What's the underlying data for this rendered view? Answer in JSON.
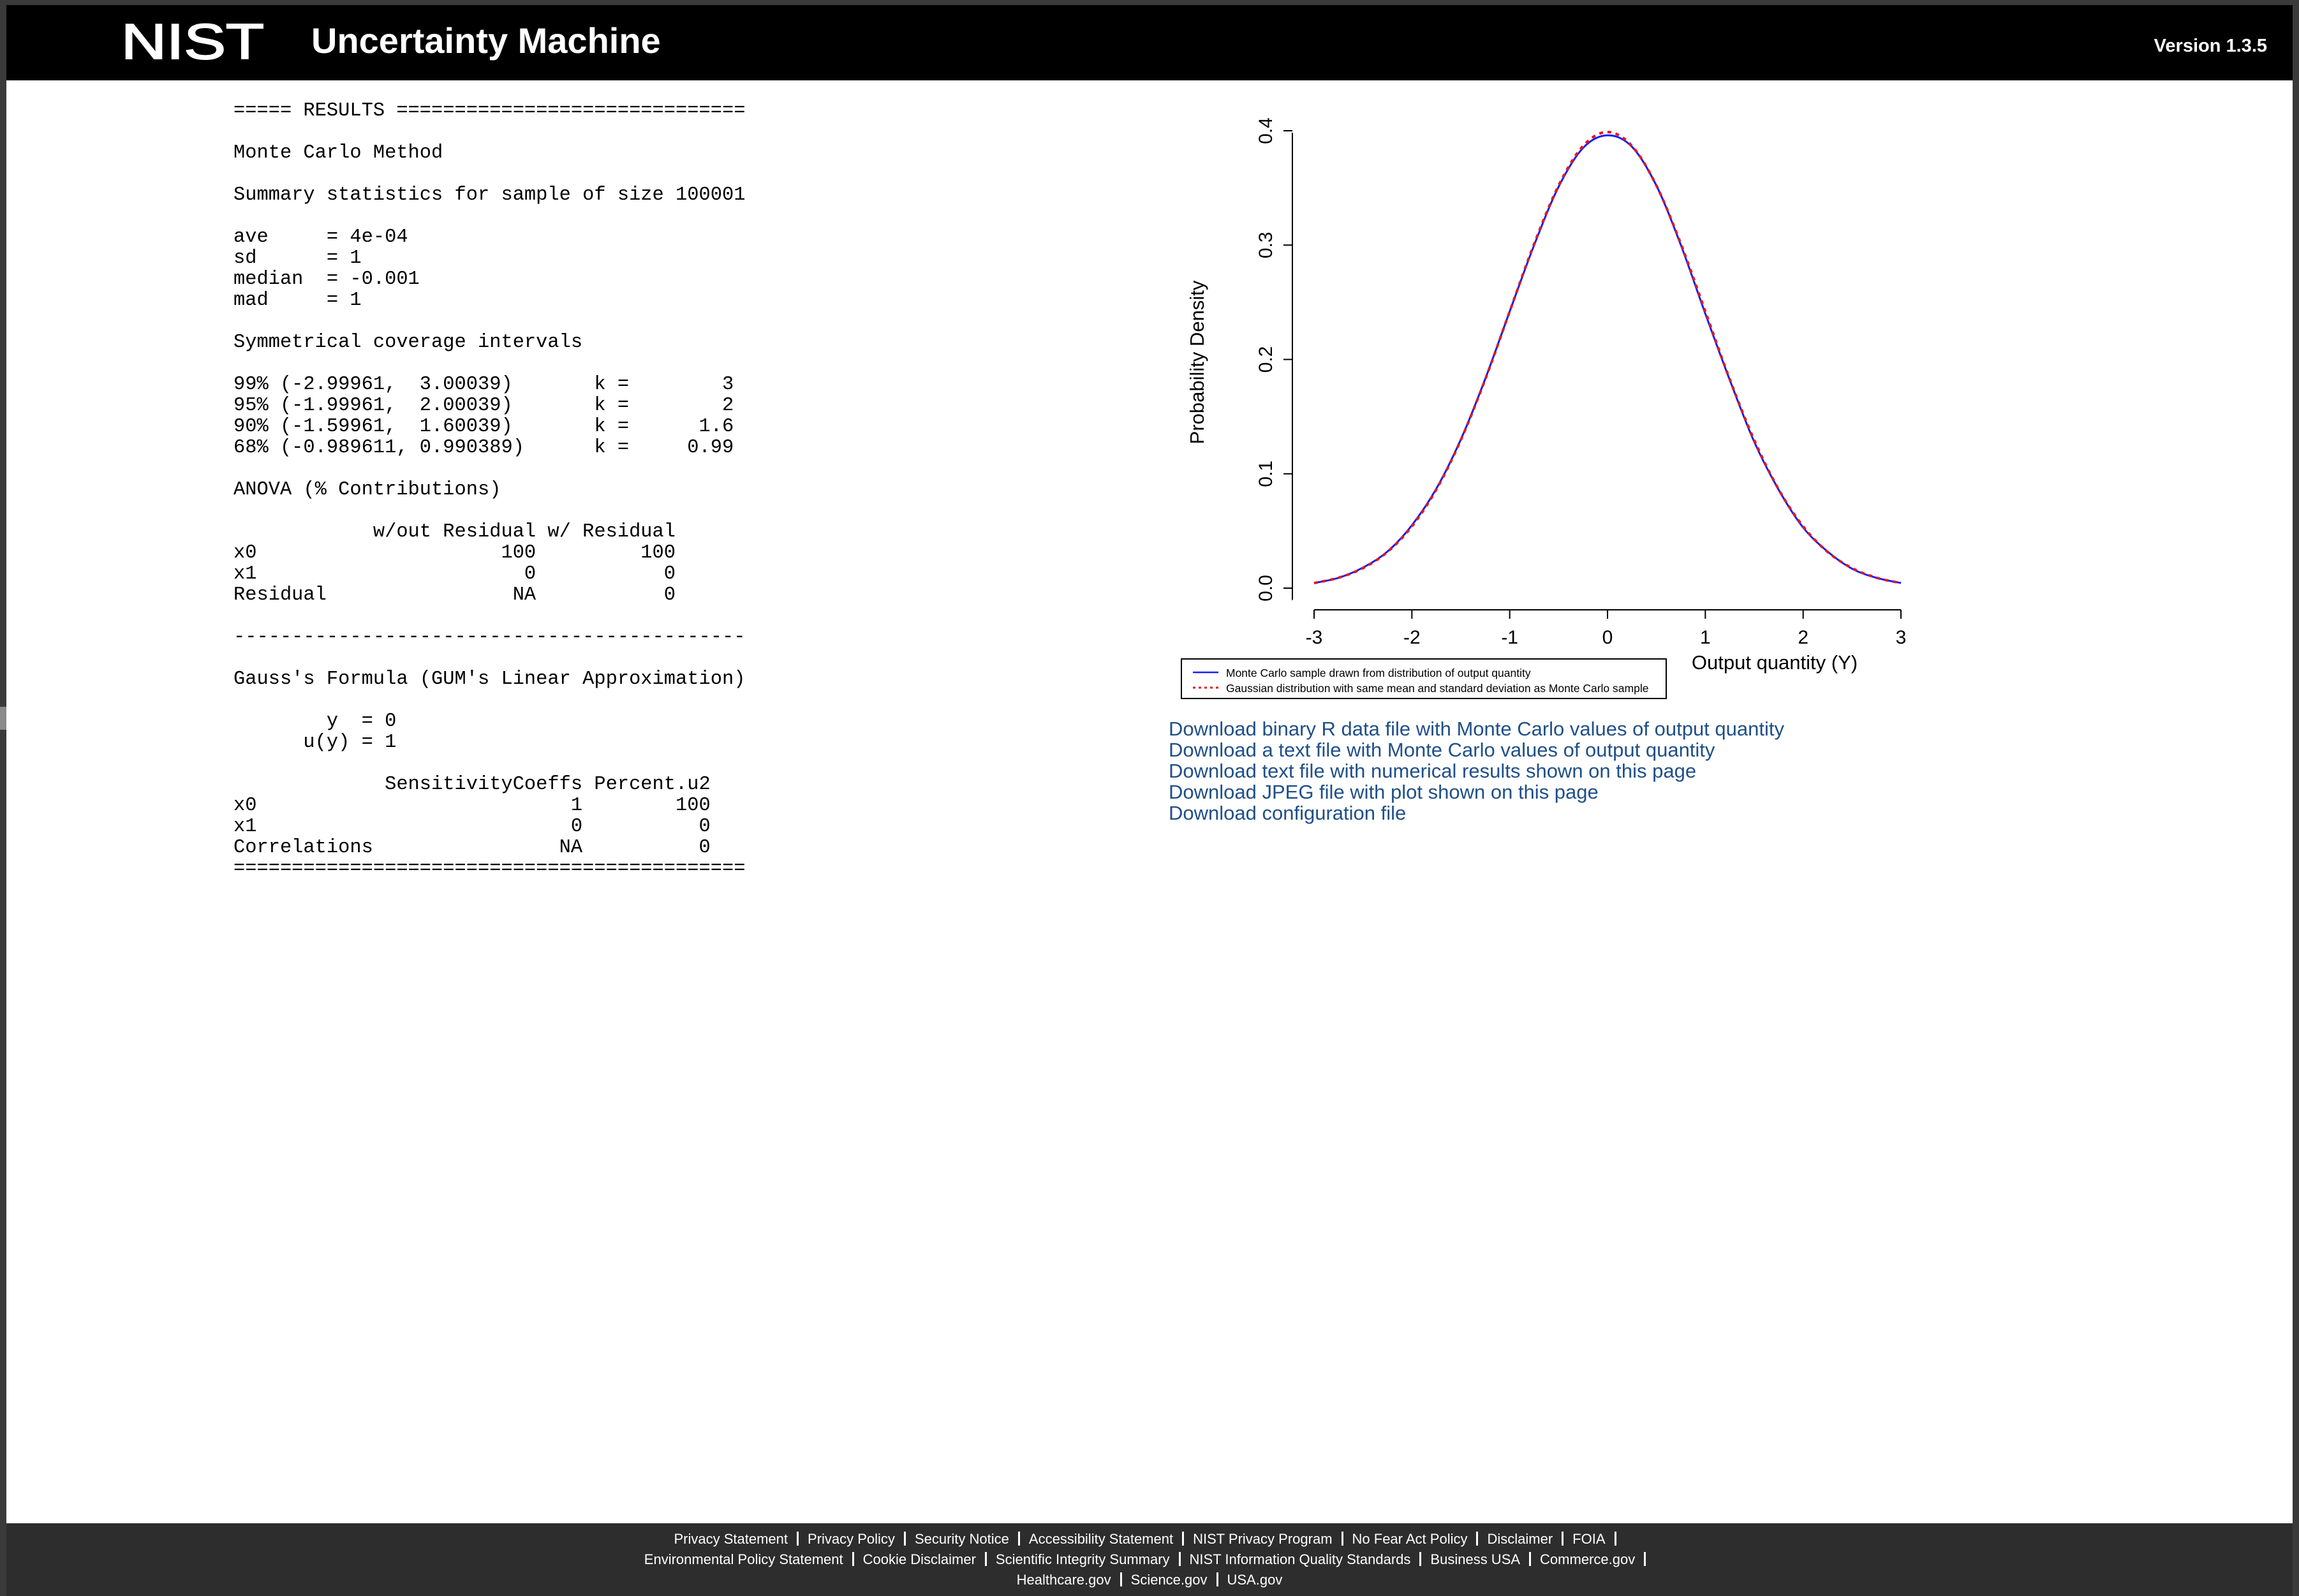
{
  "header": {
    "logo_text": "NIST",
    "title": "Uncertainty Machine",
    "version": "Version 1.3.5"
  },
  "results": {
    "lines": [
      "===== RESULTS ==============================",
      "",
      "Monte Carlo Method",
      "",
      "Summary statistics for sample of size 100001",
      "",
      "ave     = 4e-04",
      "sd      = 1",
      "median  = -0.001",
      "mad     = 1",
      "",
      "Symmetrical coverage intervals",
      "",
      "99% (-2.99961,  3.00039)       k =        3",
      "95% (-1.99961,  2.00039)       k =        2",
      "90% (-1.59961,  1.60039)       k =      1.6",
      "68% (-0.989611, 0.990389)      k =     0.99",
      "",
      "ANOVA (% Contributions)",
      "",
      "            w/out Residual w/ Residual",
      "x0                     100         100",
      "x1                       0           0",
      "Residual                NA           0",
      "",
      "--------------------------------------------",
      "",
      "Gauss's Formula (GUM's Linear Approximation)",
      "",
      "        y  = 0",
      "      u(y) = 1",
      "",
      "             SensitivityCoeffs Percent.u2",
      "x0                           1        100",
      "x1                           0          0",
      "Correlations                NA          0",
      "============================================"
    ]
  },
  "chart_data": {
    "type": "line",
    "title": "",
    "xlabel": "Output quantity (Y)",
    "ylabel": "Probability Density",
    "xlim": [
      -3,
      3
    ],
    "ylim": [
      0,
      0.4
    ],
    "x_ticks": [
      "-3",
      "-2",
      "-1",
      "0",
      "1",
      "2",
      "3"
    ],
    "y_ticks": [
      "0.0",
      "0.1",
      "0.2",
      "0.3",
      "0.4"
    ],
    "grid": false,
    "legend_position": "bottom-left",
    "x": [
      -3,
      -2.75,
      -2.5,
      -2.25,
      -2,
      -1.75,
      -1.5,
      -1.25,
      -1,
      -0.75,
      -0.5,
      -0.25,
      0,
      0.25,
      0.5,
      0.75,
      1,
      1.25,
      1.5,
      1.75,
      2,
      2.25,
      2.5,
      2.75,
      3
    ],
    "series": [
      {
        "name": "Monte Carlo sample drawn from distribution of output quantity",
        "color": "#1a1aff",
        "style": "solid",
        "values": [
          0.0045,
          0.009,
          0.018,
          0.032,
          0.055,
          0.087,
          0.13,
          0.183,
          0.242,
          0.3,
          0.351,
          0.385,
          0.396,
          0.386,
          0.352,
          0.3,
          0.24,
          0.182,
          0.128,
          0.086,
          0.053,
          0.032,
          0.017,
          0.009,
          0.0045
        ]
      },
      {
        "name": "Gaussian distribution with same mean and standard deviation as Monte Carlo sample",
        "color": "#e01a1a",
        "style": "dotted",
        "values": [
          0.0044,
          0.0091,
          0.0175,
          0.0317,
          0.054,
          0.0863,
          0.1295,
          0.1826,
          0.242,
          0.3011,
          0.3521,
          0.3867,
          0.3989,
          0.3867,
          0.3521,
          0.3011,
          0.242,
          0.1826,
          0.1295,
          0.0863,
          0.054,
          0.0317,
          0.0175,
          0.0091,
          0.0044
        ]
      }
    ]
  },
  "downloads": [
    "Download binary R data file with Monte Carlo values of output quantity",
    "Download a text file with Monte Carlo values of output quantity",
    "Download text file with numerical results shown on this page",
    "Download JPEG file with plot shown on this page",
    "Download configuration file"
  ],
  "footer": {
    "rows": [
      [
        "Privacy Statement",
        "Privacy Policy",
        "Security Notice",
        "Accessibility Statement",
        "NIST Privacy Program",
        "No Fear Act Policy",
        "Disclaimer",
        "FOIA"
      ],
      [
        "Environmental Policy Statement",
        "Cookie Disclaimer",
        "Scientific Integrity Summary",
        "NIST Information Quality Standards",
        "Business USA",
        "Commerce.gov"
      ],
      [
        "Healthcare.gov",
        "Science.gov",
        "USA.gov"
      ]
    ],
    "trailing_separator": [
      true,
      true,
      false
    ]
  }
}
